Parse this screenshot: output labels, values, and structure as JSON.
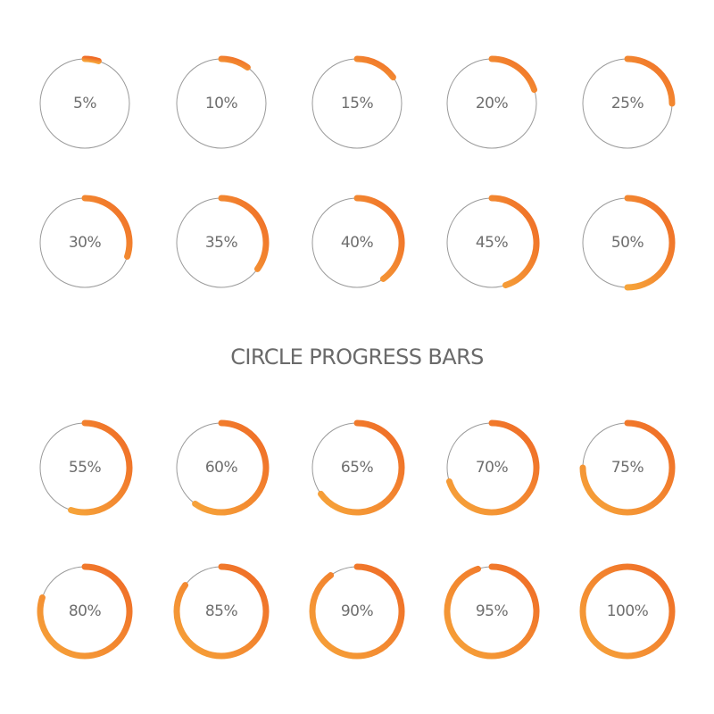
{
  "title": "CIRCLE PROGRESS BARS",
  "colors": {
    "arc_start": "#ef6a26",
    "arc_end": "#f6a43a",
    "track": "#9a9a9a",
    "label": "#6e6e6e"
  },
  "rows": [
    {
      "items": [
        {
          "value": 5,
          "label": "5%"
        },
        {
          "value": 10,
          "label": "10%"
        },
        {
          "value": 15,
          "label": "15%"
        },
        {
          "value": 20,
          "label": "20%"
        },
        {
          "value": 25,
          "label": "25%"
        }
      ]
    },
    {
      "items": [
        {
          "value": 30,
          "label": "30%"
        },
        {
          "value": 35,
          "label": "35%"
        },
        {
          "value": 40,
          "label": "40%"
        },
        {
          "value": 45,
          "label": "45%"
        },
        {
          "value": 50,
          "label": "50%"
        }
      ]
    },
    {
      "items": [
        {
          "value": 55,
          "label": "55%"
        },
        {
          "value": 60,
          "label": "60%"
        },
        {
          "value": 65,
          "label": "65%"
        },
        {
          "value": 70,
          "label": "70%"
        },
        {
          "value": 75,
          "label": "75%"
        }
      ]
    },
    {
      "items": [
        {
          "value": 80,
          "label": "80%"
        },
        {
          "value": 85,
          "label": "85%"
        },
        {
          "value": 90,
          "label": "90%"
        },
        {
          "value": 95,
          "label": "95%"
        },
        {
          "value": 100,
          "label": "100%"
        }
      ]
    }
  ]
}
